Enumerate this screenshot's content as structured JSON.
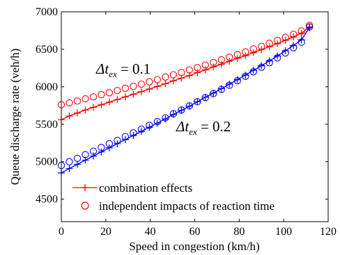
{
  "chart_data": {
    "type": "line",
    "xlabel": "Speed in congestion (km/h)",
    "ylabel": "Queue discharge rate (veh/h)",
    "xlim": [
      0,
      120
    ],
    "ylim": [
      4200,
      7000
    ],
    "xticks": [
      "0",
      "20",
      "40",
      "60",
      "80",
      "100",
      "120"
    ],
    "yticks": [
      "4500",
      "5000",
      "5500",
      "6000",
      "6500",
      "7000"
    ],
    "grid": false,
    "legend_position": "bottom",
    "legend": [
      {
        "label": "combination effects",
        "color": "#ff0000",
        "style": "line-plus"
      },
      {
        "label": "independent impacts of reaction time",
        "color": "#ff0000",
        "style": "circle"
      }
    ],
    "annotations": [
      {
        "text_main": "Δt",
        "text_sub": "ex",
        "text_rest": " = 0.1"
      },
      {
        "text_main": "Δt",
        "text_sub": "ex",
        "text_rest": " = 0.2"
      }
    ],
    "series": [
      {
        "color": "#ff0000",
        "marker": "+",
        "line": true,
        "x": [
          0,
          3.6,
          7.2,
          10.8,
          14.4,
          18,
          21.6,
          25.2,
          28.8,
          32.4,
          36,
          39.6,
          43.2,
          46.8,
          50.4,
          54,
          57.6,
          61.2,
          64.8,
          68.4,
          72,
          75.6,
          79.2,
          82.8,
          86.4,
          90,
          93.6,
          97.2,
          100.8,
          104.4,
          108,
          111.6
        ],
        "y": [
          5560,
          5610,
          5650,
          5690,
          5725,
          5760,
          5795,
          5830,
          5865,
          5900,
          5935,
          5970,
          6005,
          6040,
          6080,
          6115,
          6150,
          6190,
          6225,
          6265,
          6300,
          6340,
          6380,
          6415,
          6455,
          6495,
          6535,
          6575,
          6620,
          6665,
          6715,
          6800
        ]
      },
      {
        "color": "#ff0000",
        "marker": "o",
        "line": false,
        "x": [
          0,
          3.6,
          7.2,
          10.8,
          14.4,
          18,
          21.6,
          25.2,
          28.8,
          32.4,
          36,
          39.6,
          43.2,
          46.8,
          50.4,
          54,
          57.6,
          61.2,
          64.8,
          68.4,
          72,
          75.6,
          79.2,
          82.8,
          86.4,
          90,
          93.6,
          97.2,
          100.8,
          104.4,
          108,
          111.6
        ],
        "y": [
          5760,
          5785,
          5810,
          5840,
          5865,
          5895,
          5920,
          5950,
          5980,
          6005,
          6035,
          6065,
          6095,
          6130,
          6160,
          6190,
          6225,
          6255,
          6290,
          6325,
          6360,
          6395,
          6430,
          6465,
          6505,
          6540,
          6580,
          6620,
          6660,
          6700,
          6745,
          6820
        ]
      },
      {
        "color": "#0000ff",
        "marker": "+",
        "line": true,
        "x": [
          0,
          3.6,
          7.2,
          10.8,
          14.4,
          18,
          21.6,
          25.2,
          28.8,
          32.4,
          36,
          39.6,
          43.2,
          46.8,
          50.4,
          54,
          57.6,
          61.2,
          64.8,
          68.4,
          72,
          75.6,
          79.2,
          82.8,
          86.4,
          90,
          93.6,
          97.2,
          100.8,
          104.4,
          108,
          111.6
        ],
        "y": [
          4850,
          4910,
          4965,
          5020,
          5075,
          5130,
          5185,
          5240,
          5295,
          5350,
          5405,
          5460,
          5515,
          5570,
          5630,
          5685,
          5740,
          5800,
          5860,
          5915,
          5975,
          6035,
          6095,
          6155,
          6220,
          6280,
          6345,
          6410,
          6480,
          6550,
          6625,
          6790
        ]
      },
      {
        "color": "#0000ff",
        "marker": "o",
        "line": false,
        "x": [
          0,
          3.6,
          7.2,
          10.8,
          14.4,
          18,
          21.6,
          25.2,
          28.8,
          32.4,
          36,
          39.6,
          43.2,
          46.8,
          50.4,
          54,
          57.6,
          61.2,
          64.8,
          68.4,
          72,
          75.6,
          79.2,
          82.8,
          86.4,
          90,
          93.6,
          97.2,
          100.8,
          104.4,
          108,
          111.6
        ],
        "y": [
          4950,
          5000,
          5045,
          5095,
          5140,
          5190,
          5240,
          5285,
          5335,
          5385,
          5435,
          5485,
          5535,
          5585,
          5640,
          5690,
          5745,
          5800,
          5855,
          5910,
          5965,
          6020,
          6080,
          6140,
          6200,
          6260,
          6320,
          6385,
          6450,
          6520,
          6595,
          6800
        ]
      }
    ]
  }
}
